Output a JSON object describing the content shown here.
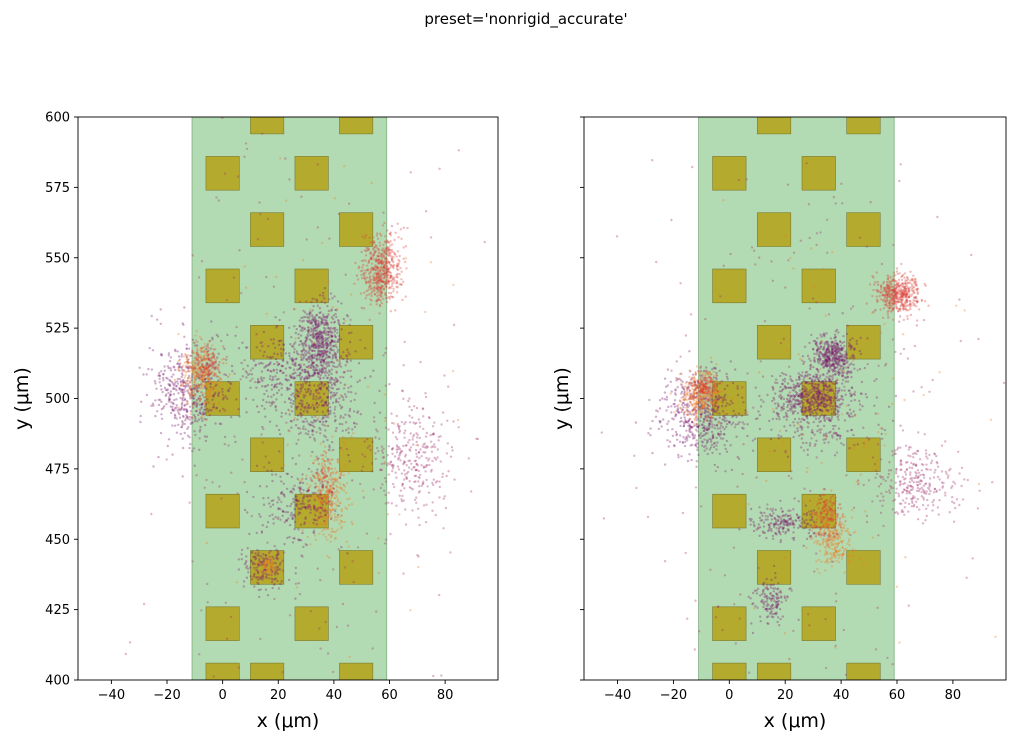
{
  "figure": {
    "suptitle": "preset='nonrigid_accurate'"
  },
  "colors": {
    "probe_region": "#b3dbb3",
    "contact": "#b3aa2e",
    "contact_edge": "#7a7a30",
    "cluster_palette": [
      "#7a1a6e",
      "#a1306a",
      "#d9423a",
      "#f07a23",
      "#f5c84a"
    ]
  },
  "chart_data": [
    {
      "type": "scatter",
      "panel": "left",
      "xlabel": "x (μm)",
      "ylabel": "y (μm)",
      "xlim": [
        -52,
        99
      ],
      "ylim": [
        400,
        600
      ],
      "xticks": [
        -40,
        -20,
        0,
        20,
        40,
        60,
        80
      ],
      "yticks": [
        400,
        425,
        450,
        475,
        500,
        525,
        550,
        575,
        600
      ],
      "show_ytick_labels": true,
      "grid": false,
      "probe_region": {
        "x": [
          -11,
          59
        ],
        "y": [
          400,
          600
        ]
      },
      "contact_size": 12,
      "contacts": [
        [
          0,
          400
        ],
        [
          16,
          600
        ],
        [
          48,
          600
        ],
        [
          0,
          580
        ],
        [
          32,
          580
        ],
        [
          16,
          560
        ],
        [
          48,
          560
        ],
        [
          0,
          540
        ],
        [
          32,
          540
        ],
        [
          16,
          520
        ],
        [
          48,
          520
        ],
        [
          0,
          500
        ],
        [
          32,
          500
        ],
        [
          16,
          480
        ],
        [
          48,
          480
        ],
        [
          0,
          460
        ],
        [
          32,
          460
        ],
        [
          16,
          440
        ],
        [
          48,
          440
        ],
        [
          0,
          420
        ],
        [
          32,
          420
        ],
        [
          16,
          400
        ],
        [
          48,
          400
        ]
      ],
      "clusters": [
        {
          "x": 57,
          "y": 546,
          "sx": 3.5,
          "sy": 6,
          "n": 520,
          "color": "#d9423a"
        },
        {
          "x": 35,
          "y": 520,
          "sx": 4,
          "sy": 7,
          "n": 520,
          "color": "#7a1a6e"
        },
        {
          "x": 27,
          "y": 508,
          "sx": 10,
          "sy": 8,
          "n": 420,
          "color": "#7a1a6e"
        },
        {
          "x": -12,
          "y": 502,
          "sx": 7,
          "sy": 9,
          "n": 520,
          "color": "#7a1a6e"
        },
        {
          "x": -8,
          "y": 508,
          "sx": 3.5,
          "sy": 6,
          "n": 300,
          "color": "#f07a23"
        },
        {
          "x": -6,
          "y": 513,
          "sx": 2.5,
          "sy": 3,
          "n": 120,
          "color": "#d9423a"
        },
        {
          "x": 38,
          "y": 464,
          "sx": 3.5,
          "sy": 8,
          "n": 260,
          "color": "#f07a23"
        },
        {
          "x": 36,
          "y": 470,
          "sx": 2.5,
          "sy": 5,
          "n": 120,
          "color": "#d9423a"
        },
        {
          "x": 15,
          "y": 440,
          "sx": 4,
          "sy": 4,
          "n": 160,
          "color": "#7a1a6e"
        },
        {
          "x": 16,
          "y": 441,
          "sx": 2,
          "sy": 2,
          "n": 60,
          "color": "#f07a23"
        },
        {
          "x": 26,
          "y": 462,
          "sx": 7,
          "sy": 7,
          "n": 220,
          "color": "#7a1a6e"
        },
        {
          "x": 68,
          "y": 478,
          "sx": 8,
          "sy": 10,
          "n": 300,
          "color": "#a1306a"
        },
        {
          "x": 34,
          "y": 495,
          "sx": 8,
          "sy": 7,
          "n": 200,
          "color": "#7a1a6e"
        },
        {
          "x": 30,
          "y": 495,
          "sx": 30,
          "sy": 55,
          "n": 240,
          "color": "#a1306a"
        },
        {
          "x": 40,
          "y": 505,
          "sx": 20,
          "sy": 40,
          "n": 90,
          "color": "#f07a23"
        }
      ]
    },
    {
      "type": "scatter",
      "panel": "right",
      "xlabel": "x (μm)",
      "ylabel": "y (μm)",
      "xlim": [
        -52,
        99
      ],
      "ylim": [
        400,
        600
      ],
      "xticks": [
        -40,
        -20,
        0,
        20,
        40,
        60,
        80
      ],
      "yticks": [
        400,
        425,
        450,
        475,
        500,
        525,
        550,
        575,
        600
      ],
      "show_ytick_labels": false,
      "grid": false,
      "probe_region": {
        "x": [
          -11,
          59
        ],
        "y": [
          400,
          600
        ]
      },
      "contact_size": 12,
      "contacts": [
        [
          0,
          400
        ],
        [
          16,
          600
        ],
        [
          48,
          600
        ],
        [
          0,
          580
        ],
        [
          32,
          580
        ],
        [
          16,
          560
        ],
        [
          48,
          560
        ],
        [
          0,
          540
        ],
        [
          32,
          540
        ],
        [
          16,
          520
        ],
        [
          48,
          520
        ],
        [
          0,
          500
        ],
        [
          32,
          500
        ],
        [
          16,
          480
        ],
        [
          48,
          480
        ],
        [
          0,
          460
        ],
        [
          32,
          460
        ],
        [
          16,
          440
        ],
        [
          48,
          440
        ],
        [
          0,
          420
        ],
        [
          32,
          420
        ],
        [
          16,
          400
        ],
        [
          48,
          400
        ]
      ],
      "clusters": [
        {
          "x": 60,
          "y": 537,
          "sx": 4,
          "sy": 3.5,
          "n": 450,
          "color": "#d9423a"
        },
        {
          "x": 37,
          "y": 515,
          "sx": 4,
          "sy": 3.5,
          "n": 420,
          "color": "#7a1a6e"
        },
        {
          "x": 30,
          "y": 501,
          "sx": 7,
          "sy": 4,
          "n": 520,
          "color": "#7a1a6e"
        },
        {
          "x": -10,
          "y": 495,
          "sx": 7,
          "sy": 8,
          "n": 560,
          "color": "#7a1a6e"
        },
        {
          "x": -10,
          "y": 501,
          "sx": 3.5,
          "sy": 4,
          "n": 320,
          "color": "#f07a23"
        },
        {
          "x": -9,
          "y": 504,
          "sx": 2,
          "sy": 2.5,
          "n": 120,
          "color": "#d9423a"
        },
        {
          "x": 37,
          "y": 450,
          "sx": 3.5,
          "sy": 5,
          "n": 240,
          "color": "#f07a23"
        },
        {
          "x": 35,
          "y": 458,
          "sx": 2.5,
          "sy": 4,
          "n": 140,
          "color": "#d9423a"
        },
        {
          "x": 15,
          "y": 428,
          "sx": 3,
          "sy": 4,
          "n": 140,
          "color": "#7a1a6e"
        },
        {
          "x": 20,
          "y": 456,
          "sx": 6,
          "sy": 3,
          "n": 200,
          "color": "#7a1a6e"
        },
        {
          "x": 66,
          "y": 470,
          "sx": 8,
          "sy": 6,
          "n": 280,
          "color": "#a1306a"
        },
        {
          "x": 32,
          "y": 492,
          "sx": 10,
          "sy": 6,
          "n": 200,
          "color": "#7a1a6e"
        },
        {
          "x": 30,
          "y": 495,
          "sx": 30,
          "sy": 55,
          "n": 240,
          "color": "#a1306a"
        },
        {
          "x": 40,
          "y": 500,
          "sx": 20,
          "sy": 40,
          "n": 90,
          "color": "#f07a23"
        }
      ]
    }
  ]
}
